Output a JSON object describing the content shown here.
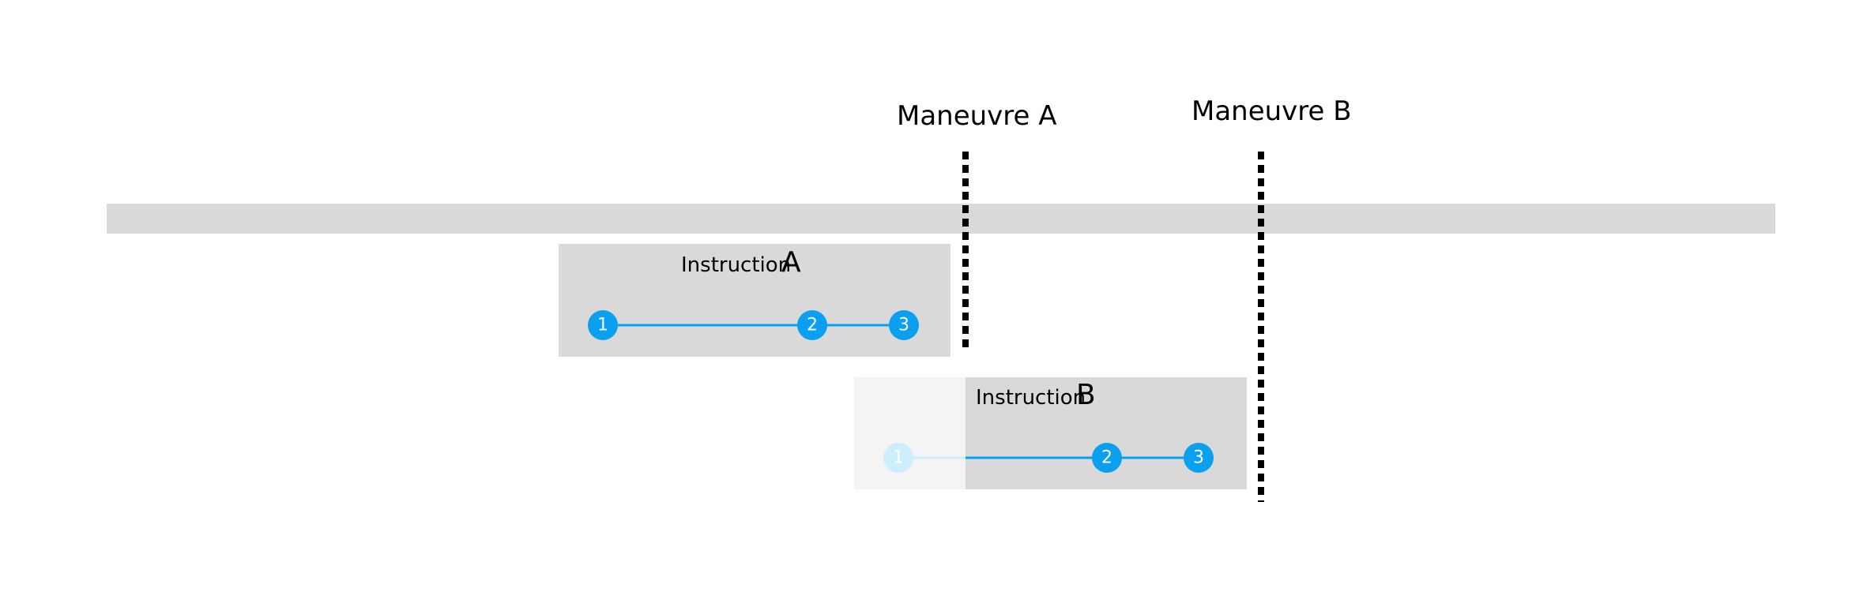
{
  "maneuvers": [
    {
      "label": "Maneuvre A"
    },
    {
      "label": "Maneuvre B"
    }
  ],
  "instructions": [
    {
      "word": "Instruction",
      "letter": "A",
      "steps": [
        "1",
        "2",
        "3"
      ]
    },
    {
      "word": "Instruction",
      "letter": "B",
      "steps": [
        "1",
        "2",
        "3"
      ]
    }
  ],
  "colors": {
    "road": "#d9d9d9",
    "panel": "#d9d9d9",
    "panel_faded": "#f4f4f4",
    "step": "#0aa0ef",
    "step_faded": "#cdeefc",
    "marker": "#000000"
  }
}
